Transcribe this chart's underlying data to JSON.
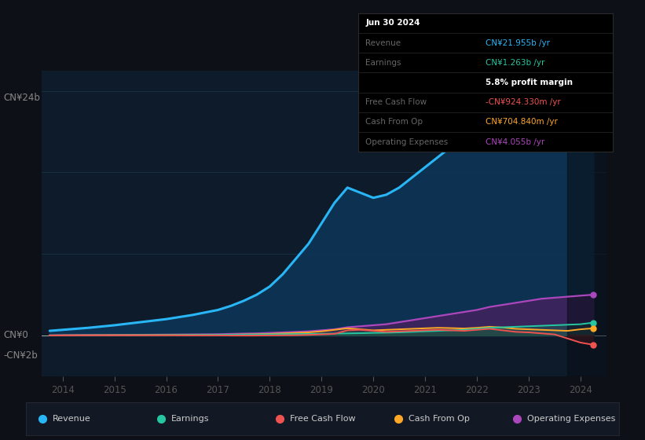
{
  "bg_color": "#0d1117",
  "chart_bg": "#0d1b2a",
  "ylabel_top": "CN¥24b",
  "ylabel_zero": "CN¥0",
  "ylabel_neg": "-CN¥2b",
  "x_years": [
    2013.75,
    2014.0,
    2014.5,
    2015.0,
    2015.5,
    2016.0,
    2016.5,
    2017.0,
    2017.25,
    2017.5,
    2017.75,
    2018.0,
    2018.25,
    2018.5,
    2018.75,
    2019.0,
    2019.25,
    2019.5,
    2019.75,
    2020.0,
    2020.25,
    2020.5,
    2020.75,
    2021.0,
    2021.25,
    2021.5,
    2021.75,
    2022.0,
    2022.25,
    2022.5,
    2022.75,
    2023.0,
    2023.25,
    2023.5,
    2023.75,
    2024.0,
    2024.25
  ],
  "revenue": [
    0.45,
    0.55,
    0.75,
    1.0,
    1.3,
    1.6,
    2.0,
    2.5,
    2.9,
    3.4,
    4.0,
    4.8,
    6.0,
    7.5,
    9.0,
    11.0,
    13.0,
    14.5,
    14.0,
    13.5,
    13.8,
    14.5,
    15.5,
    16.5,
    17.5,
    18.5,
    19.5,
    21.5,
    23.0,
    23.5,
    22.5,
    21.5,
    20.5,
    20.0,
    21.0,
    21.8,
    22.0
  ],
  "earnings": [
    0.01,
    0.01,
    0.02,
    0.02,
    0.03,
    0.04,
    0.05,
    0.06,
    0.07,
    0.08,
    0.09,
    0.1,
    0.12,
    0.14,
    0.15,
    0.16,
    0.18,
    0.2,
    0.22,
    0.25,
    0.27,
    0.3,
    0.35,
    0.4,
    0.45,
    0.5,
    0.55,
    0.65,
    0.75,
    0.8,
    0.85,
    0.9,
    0.95,
    1.0,
    1.05,
    1.1,
    1.26
  ],
  "free_cash_flow": [
    0.0,
    0.0,
    0.01,
    0.01,
    0.01,
    0.01,
    0.0,
    0.0,
    -0.01,
    -0.01,
    -0.01,
    0.0,
    0.01,
    0.02,
    0.05,
    0.1,
    0.15,
    0.5,
    0.55,
    0.45,
    0.35,
    0.4,
    0.45,
    0.5,
    0.55,
    0.5,
    0.45,
    0.55,
    0.65,
    0.5,
    0.35,
    0.3,
    0.2,
    0.1,
    -0.3,
    -0.7,
    -0.92
  ],
  "cash_from_op": [
    0.0,
    0.01,
    0.02,
    0.03,
    0.04,
    0.05,
    0.06,
    0.07,
    0.08,
    0.1,
    0.12,
    0.15,
    0.2,
    0.25,
    0.3,
    0.4,
    0.55,
    0.7,
    0.6,
    0.5,
    0.55,
    0.6,
    0.65,
    0.7,
    0.75,
    0.72,
    0.68,
    0.75,
    0.85,
    0.78,
    0.65,
    0.6,
    0.55,
    0.5,
    0.45,
    0.6,
    0.7
  ],
  "operating_expenses": [
    0.0,
    0.02,
    0.03,
    0.04,
    0.06,
    0.08,
    0.1,
    0.12,
    0.15,
    0.18,
    0.2,
    0.25,
    0.3,
    0.35,
    0.4,
    0.5,
    0.6,
    0.8,
    0.9,
    1.0,
    1.1,
    1.3,
    1.5,
    1.7,
    1.9,
    2.1,
    2.3,
    2.5,
    2.8,
    3.0,
    3.2,
    3.4,
    3.6,
    3.7,
    3.8,
    3.9,
    4.0
  ],
  "revenue_color": "#29b6f6",
  "earnings_color": "#26c6a0",
  "free_cash_flow_color": "#ef5350",
  "cash_from_op_color": "#ffa726",
  "operating_expenses_color": "#ab47bc",
  "revenue_fill": "#0d3555",
  "earnings_fill": "#1a5c50",
  "free_cash_flow_fill": "#7a2020",
  "cash_from_op_fill": "#7a5010",
  "operating_expenses_fill": "#4a2060",
  "grid_color": "#1a2e40",
  "revenue_label": "CN¥21.955b /yr",
  "earnings_label": "CN¥1.263b /yr",
  "profit_margin": "5.8% profit margin",
  "fcf_label": "-CN¥924.330m /yr",
  "cashop_label": "CN¥704.840m /yr",
  "opex_label": "CN¥4.055b /yr",
  "ylim_top": 26,
  "ylim_bottom": -4,
  "xlim_left": 2013.6,
  "xlim_right": 2024.5,
  "xticks": [
    2014,
    2015,
    2016,
    2017,
    2018,
    2019,
    2020,
    2021,
    2022,
    2023,
    2024
  ],
  "grid_yticks": [
    0,
    8,
    16,
    24
  ]
}
